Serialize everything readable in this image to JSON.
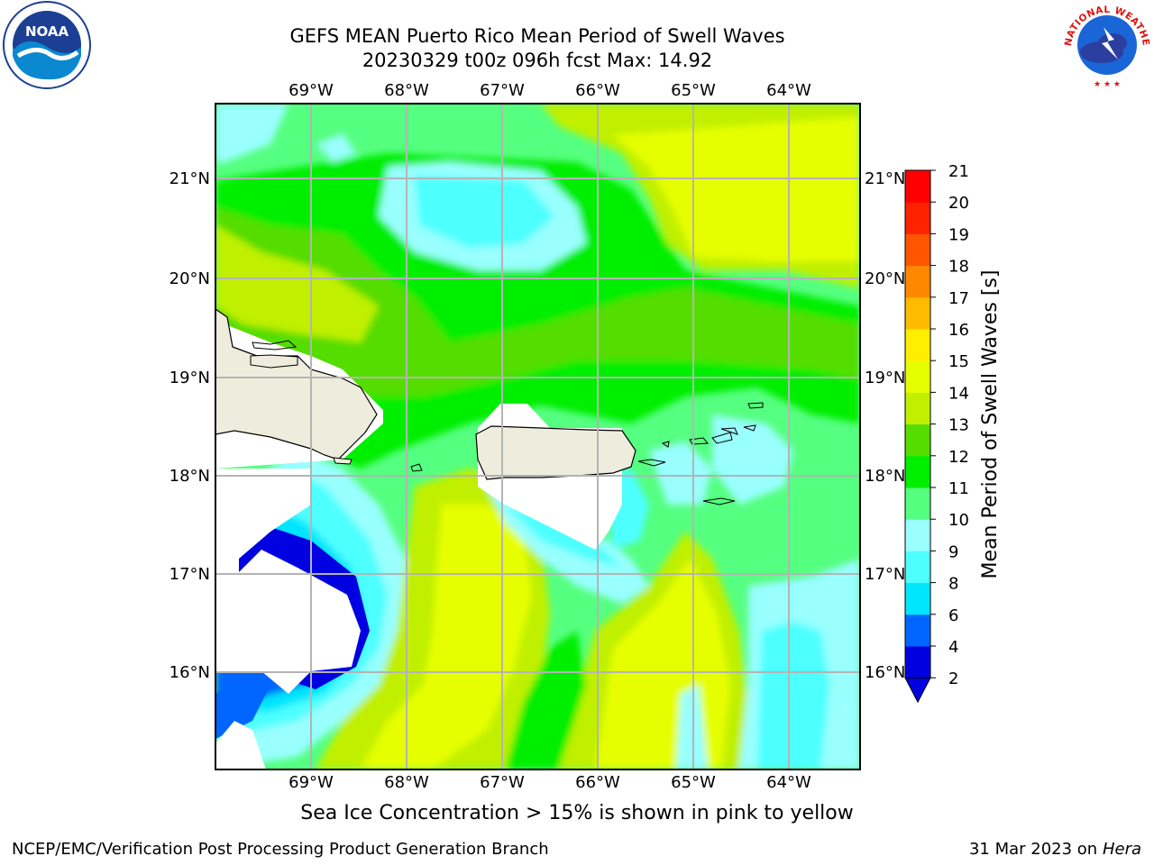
{
  "title": {
    "line1": "GEFS MEAN Puerto Rico Mean Period of Swell Waves",
    "line2": "20230329 t00z 096h fcst   Max: 14.92"
  },
  "map": {
    "lon_ticks": [
      "69°W",
      "68°W",
      "67°W",
      "66°W",
      "65°W",
      "64°W"
    ],
    "lat_ticks": [
      "21°N",
      "20°N",
      "19°N",
      "18°N",
      "17°N",
      "16°N"
    ],
    "land_color": "#eeeddd",
    "masked_color": "#ffffff"
  },
  "colorbar": {
    "label": "Mean Period of Swell Waves [s]",
    "ticks": [
      "2",
      "4",
      "6",
      "8",
      "9",
      "10",
      "11",
      "12",
      "13",
      "14",
      "15",
      "16",
      "17",
      "18",
      "19",
      "20",
      "21"
    ],
    "colors": [
      "#0000e0",
      "#0066ff",
      "#00e6ff",
      "#4dffff",
      "#99ffff",
      "#55ff7f",
      "#00ee00",
      "#55dd00",
      "#c0f000",
      "#e6ff00",
      "#ffee00",
      "#ffbb00",
      "#ff8800",
      "#ff5500",
      "#ff2200",
      "#ff0000"
    ]
  },
  "footer": {
    "note": "Sea Ice Concentration > 15% is shown in pink to yellow",
    "credit": "NCEP/EMC/Verification Post Processing Product Generation Branch",
    "date": "31 Mar 2023 on",
    "host": "Hera"
  },
  "logos": {
    "left": "NOAA",
    "right": "NATIONAL WEATHER SERVICE"
  }
}
